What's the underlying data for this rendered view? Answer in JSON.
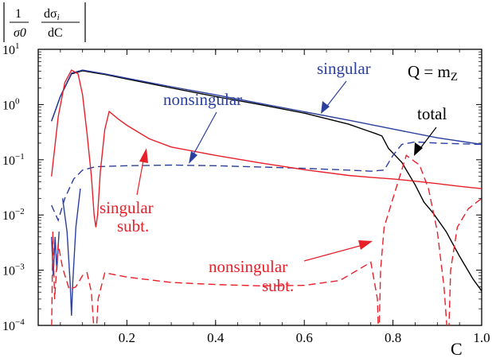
{
  "chart_data": {
    "type": "line",
    "title": "",
    "xlabel": "C",
    "ylabel": "|1/σ0 dσi/dC|",
    "ylabel_parts": {
      "num1": "1",
      "den1": "σ0",
      "num2": "dσ",
      "sub2": "i",
      "den2": "dC"
    },
    "yscale": "log",
    "xlim": [
      0.0,
      1.0
    ],
    "ylim": [
      0.0001,
      10
    ],
    "x_ticks": [
      0.2,
      0.4,
      0.6,
      0.8,
      1.0
    ],
    "x_tick_labels": [
      "0.2",
      "0.4",
      "0.6",
      "0.8",
      "1.0"
    ],
    "y_ticks": [
      0.0001,
      0.001,
      0.01,
      0.1,
      1,
      10
    ],
    "y_tick_labels": [
      {
        "base": "10",
        "exp": "−4"
      },
      {
        "base": "10",
        "exp": "−3"
      },
      {
        "base": "10",
        "exp": "−2"
      },
      {
        "base": "10",
        "exp": "−1"
      },
      {
        "base": "10",
        "exp": "0"
      },
      {
        "base": "10",
        "exp": "1"
      }
    ],
    "series_colors": {
      "black": "#000000",
      "blue": "#2b3f9e",
      "red": "#e8202a"
    },
    "series": [
      {
        "name": "total",
        "color": "#000000",
        "dash": "solid",
        "points": [
          [
            0.03,
            0.5
          ],
          [
            0.05,
            1.4
          ],
          [
            0.075,
            3.6
          ],
          [
            0.1,
            4.1
          ],
          [
            0.15,
            3.5
          ],
          [
            0.2,
            2.9
          ],
          [
            0.3,
            2.0
          ],
          [
            0.4,
            1.4
          ],
          [
            0.5,
            1.0
          ],
          [
            0.6,
            0.7
          ],
          [
            0.7,
            0.44
          ],
          [
            0.74,
            0.34
          ],
          [
            0.76,
            0.3
          ],
          [
            0.775,
            0.27
          ],
          [
            0.79,
            0.16
          ],
          [
            0.82,
            0.09
          ],
          [
            0.85,
            0.035
          ],
          [
            0.87,
            0.017
          ],
          [
            0.89,
            0.011
          ],
          [
            0.92,
            0.005
          ],
          [
            0.95,
            0.0018
          ],
          [
            0.98,
            0.0007
          ],
          [
            1.0,
            0.00042
          ]
        ]
      },
      {
        "name": "singular",
        "color": "#2b3f9e",
        "dash": "solid",
        "points": [
          [
            0.03,
            0.5
          ],
          [
            0.05,
            1.4
          ],
          [
            0.075,
            3.7
          ],
          [
            0.1,
            4.2
          ],
          [
            0.15,
            3.6
          ],
          [
            0.2,
            3.0
          ],
          [
            0.3,
            2.1
          ],
          [
            0.4,
            1.5
          ],
          [
            0.5,
            1.05
          ],
          [
            0.6,
            0.74
          ],
          [
            0.7,
            0.52
          ],
          [
            0.8,
            0.36
          ],
          [
            0.9,
            0.25
          ],
          [
            1.0,
            0.19
          ]
        ]
      },
      {
        "name": "nonsingular",
        "color": "#2b3f9e",
        "dash": "dashed",
        "points": [
          [
            0.03,
            0.015
          ],
          [
            0.045,
            0.008
          ],
          [
            0.06,
            0.02
          ],
          [
            0.08,
            0.045
          ],
          [
            0.1,
            0.065
          ],
          [
            0.13,
            0.075
          ],
          [
            0.2,
            0.078
          ],
          [
            0.3,
            0.08
          ],
          [
            0.4,
            0.078
          ],
          [
            0.5,
            0.074
          ],
          [
            0.6,
            0.07
          ],
          [
            0.7,
            0.065
          ],
          [
            0.75,
            0.062
          ],
          [
            0.78,
            0.065
          ],
          [
            0.8,
            0.12
          ],
          [
            0.82,
            0.19
          ],
          [
            0.85,
            0.21
          ],
          [
            0.9,
            0.2
          ],
          [
            1.0,
            0.19
          ]
        ]
      },
      {
        "name": "nonsingular spike",
        "color": "#2b3f9e",
        "dash": "solid",
        "points": [
          [
            0.03,
            0.004
          ],
          [
            0.034,
            0.0008
          ],
          [
            0.038,
            0.004
          ],
          [
            0.042,
            0.001
          ],
          [
            0.047,
            0.005
          ]
        ]
      },
      {
        "name": "nonsingular dip",
        "color": "#2b3f9e",
        "dash": "solid",
        "points": [
          [
            0.055,
            0.02
          ],
          [
            0.065,
            0.005
          ],
          [
            0.072,
            0.0006
          ],
          [
            0.075,
            0.00015
          ],
          [
            0.078,
            0.0006
          ],
          [
            0.085,
            0.006
          ],
          [
            0.095,
            0.03
          ]
        ]
      },
      {
        "name": "singular subt.",
        "color": "#e8202a",
        "dash": "solid",
        "points": [
          [
            0.03,
            0.05
          ],
          [
            0.045,
            0.6
          ],
          [
            0.06,
            2.5
          ],
          [
            0.075,
            4.2
          ],
          [
            0.09,
            3.6
          ],
          [
            0.1,
            1.5
          ],
          [
            0.11,
            0.3
          ],
          [
            0.12,
            0.05
          ],
          [
            0.126,
            0.01
          ],
          [
            0.13,
            0.006
          ],
          [
            0.134,
            0.01
          ],
          [
            0.14,
            0.06
          ],
          [
            0.15,
            0.35
          ],
          [
            0.16,
            0.75
          ],
          [
            0.18,
            0.55
          ],
          [
            0.2,
            0.42
          ],
          [
            0.25,
            0.24
          ],
          [
            0.3,
            0.17
          ],
          [
            0.4,
            0.12
          ],
          [
            0.5,
            0.088
          ],
          [
            0.6,
            0.066
          ],
          [
            0.7,
            0.052
          ],
          [
            0.75,
            0.048
          ],
          [
            0.8,
            0.045
          ],
          [
            0.85,
            0.041
          ],
          [
            0.9,
            0.037
          ],
          [
            0.95,
            0.033
          ],
          [
            1.0,
            0.03
          ]
        ]
      },
      {
        "name": "nonsingular subt.",
        "color": "#e8202a",
        "dash": "dashed",
        "points": [
          [
            0.03,
            6e-05
          ],
          [
            0.033,
            0.005
          ],
          [
            0.037,
            0.0003
          ],
          [
            0.045,
            0.003
          ],
          [
            0.055,
            0.0011
          ],
          [
            0.07,
            0.00045
          ],
          [
            0.085,
            0.0005
          ],
          [
            0.1,
            0.0008
          ],
          [
            0.11,
            0.0009
          ],
          [
            0.12,
            0.0004
          ],
          [
            0.127,
            6e-05
          ],
          [
            0.13,
            5e-05
          ],
          [
            0.135,
            0.0003
          ],
          [
            0.15,
            0.0009
          ],
          [
            0.2,
            0.00075
          ],
          [
            0.3,
            0.0006
          ],
          [
            0.4,
            0.00055
          ],
          [
            0.5,
            0.00052
          ],
          [
            0.6,
            0.00053
          ],
          [
            0.68,
            0.00065
          ],
          [
            0.72,
            0.001
          ],
          [
            0.75,
            0.0014
          ],
          [
            0.765,
            0.0003
          ],
          [
            0.768,
            4e-05
          ],
          [
            0.772,
            0.001
          ],
          [
            0.78,
            0.006
          ],
          [
            0.8,
            0.02
          ],
          [
            0.83,
            0.12
          ],
          [
            0.86,
            0.08
          ],
          [
            0.88,
            0.03
          ],
          [
            0.9,
            0.005
          ],
          [
            0.915,
            0.0005
          ],
          [
            0.925,
            4e-05
          ],
          [
            0.93,
            0.001
          ],
          [
            0.945,
            0.006
          ],
          [
            0.97,
            0.013
          ],
          [
            1.0,
            0.02
          ]
        ]
      }
    ],
    "annotations": {
      "nonsingular": "nonsingular",
      "singular": "singular",
      "q_label_left": "Q = m",
      "q_label_sub": "Z",
      "total": "total",
      "singular_subt_1": "singular",
      "singular_subt_2": "subt.",
      "nonsingular_subt_1": "nonsingular",
      "nonsingular_subt_2": "subt."
    }
  }
}
